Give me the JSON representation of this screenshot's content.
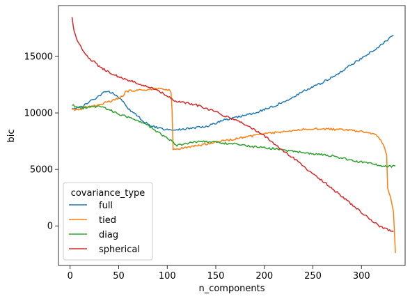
{
  "chart_data": {
    "type": "line",
    "xlabel": "n_components",
    "ylabel": "bic",
    "xlim": [
      -12,
      345
    ],
    "ylim": [
      -3500,
      19500
    ],
    "xticks": [
      0,
      50,
      100,
      150,
      200,
      250,
      300
    ],
    "yticks": [
      0,
      5000,
      10000,
      15000
    ],
    "legend": {
      "title": "covariance_type",
      "placement": "bottom-left"
    },
    "series": [
      {
        "name": "full",
        "color": "#1f77b4",
        "points": [
          [
            2,
            10400
          ],
          [
            10,
            10500
          ],
          [
            15,
            10700
          ],
          [
            20,
            11000
          ],
          [
            25,
            11200
          ],
          [
            30,
            11500
          ],
          [
            35,
            11800
          ],
          [
            40,
            11850
          ],
          [
            45,
            11700
          ],
          [
            50,
            11400
          ],
          [
            55,
            11000
          ],
          [
            60,
            10400
          ],
          [
            65,
            10000
          ],
          [
            70,
            9700
          ],
          [
            75,
            9300
          ],
          [
            80,
            9000
          ],
          [
            85,
            8800
          ],
          [
            90,
            8700
          ],
          [
            95,
            8550
          ],
          [
            100,
            8500
          ],
          [
            110,
            8500
          ],
          [
            120,
            8600
          ],
          [
            130,
            8700
          ],
          [
            140,
            8800
          ],
          [
            150,
            9100
          ],
          [
            160,
            9400
          ],
          [
            170,
            9600
          ],
          [
            180,
            9800
          ],
          [
            190,
            10000
          ],
          [
            200,
            10300
          ],
          [
            210,
            10600
          ],
          [
            220,
            11000
          ],
          [
            230,
            11400
          ],
          [
            240,
            11900
          ],
          [
            250,
            12300
          ],
          [
            260,
            12700
          ],
          [
            270,
            13200
          ],
          [
            280,
            13700
          ],
          [
            290,
            14300
          ],
          [
            300,
            14800
          ],
          [
            310,
            15400
          ],
          [
            320,
            16000
          ],
          [
            333,
            16900
          ]
        ]
      },
      {
        "name": "tied",
        "color": "#ff7f0e",
        "points": [
          [
            2,
            10300
          ],
          [
            10,
            10300
          ],
          [
            15,
            10500
          ],
          [
            20,
            10550
          ],
          [
            25,
            10650
          ],
          [
            30,
            10750
          ],
          [
            40,
            11000
          ],
          [
            50,
            11300
          ],
          [
            55,
            11550
          ],
          [
            57,
            11900
          ],
          [
            65,
            12000
          ],
          [
            75,
            12050
          ],
          [
            85,
            12100
          ],
          [
            95,
            12150
          ],
          [
            103,
            12000
          ],
          [
            104,
            11700
          ],
          [
            105,
            10200
          ],
          [
            106,
            6700
          ],
          [
            110,
            6800
          ],
          [
            120,
            6950
          ],
          [
            130,
            7100
          ],
          [
            140,
            7250
          ],
          [
            150,
            7400
          ],
          [
            160,
            7550
          ],
          [
            170,
            7700
          ],
          [
            180,
            7850
          ],
          [
            190,
            8000
          ],
          [
            200,
            8150
          ],
          [
            210,
            8250
          ],
          [
            220,
            8350
          ],
          [
            230,
            8450
          ],
          [
            240,
            8550
          ],
          [
            250,
            8600
          ],
          [
            260,
            8600
          ],
          [
            270,
            8550
          ],
          [
            280,
            8500
          ],
          [
            290,
            8450
          ],
          [
            300,
            8350
          ],
          [
            310,
            8200
          ],
          [
            315,
            8000
          ],
          [
            320,
            7600
          ],
          [
            324,
            6900
          ],
          [
            326,
            6200
          ],
          [
            327,
            3300
          ],
          [
            330,
            2500
          ],
          [
            333,
            1200
          ],
          [
            335,
            -2400
          ]
        ]
      },
      {
        "name": "diag",
        "color": "#2ca02c",
        "points": [
          [
            2,
            10700
          ],
          [
            10,
            10400
          ],
          [
            20,
            10500
          ],
          [
            30,
            10600
          ],
          [
            40,
            10300
          ],
          [
            50,
            9900
          ],
          [
            60,
            9600
          ],
          [
            70,
            9300
          ],
          [
            80,
            8900
          ],
          [
            90,
            8300
          ],
          [
            100,
            7800
          ],
          [
            105,
            7500
          ],
          [
            110,
            7100
          ],
          [
            120,
            7300
          ],
          [
            130,
            7450
          ],
          [
            140,
            7500
          ],
          [
            150,
            7400
          ],
          [
            160,
            7300
          ],
          [
            170,
            7250
          ],
          [
            180,
            7100
          ],
          [
            190,
            7000
          ],
          [
            200,
            6900
          ],
          [
            210,
            6850
          ],
          [
            220,
            6700
          ],
          [
            230,
            6600
          ],
          [
            240,
            6500
          ],
          [
            250,
            6400
          ],
          [
            260,
            6300
          ],
          [
            270,
            6200
          ],
          [
            280,
            6000
          ],
          [
            290,
            5800
          ],
          [
            300,
            5650
          ],
          [
            310,
            5500
          ],
          [
            320,
            5350
          ],
          [
            327,
            5250
          ],
          [
            335,
            5300
          ]
        ]
      },
      {
        "name": "spherical",
        "color": "#d62728",
        "points": [
          [
            2,
            18400
          ],
          [
            4,
            17200
          ],
          [
            7,
            16400
          ],
          [
            10,
            16000
          ],
          [
            15,
            15300
          ],
          [
            20,
            14800
          ],
          [
            25,
            14500
          ],
          [
            30,
            14100
          ],
          [
            40,
            13600
          ],
          [
            50,
            13200
          ],
          [
            60,
            12900
          ],
          [
            70,
            12600
          ],
          [
            80,
            12300
          ],
          [
            90,
            12000
          ],
          [
            100,
            11500
          ],
          [
            110,
            11000
          ],
          [
            120,
            10900
          ],
          [
            130,
            10700
          ],
          [
            140,
            10400
          ],
          [
            150,
            10100
          ],
          [
            160,
            9700
          ],
          [
            170,
            9400
          ],
          [
            180,
            9000
          ],
          [
            190,
            8500
          ],
          [
            200,
            8000
          ],
          [
            210,
            7300
          ],
          [
            220,
            6600
          ],
          [
            230,
            6000
          ],
          [
            240,
            5300
          ],
          [
            250,
            4600
          ],
          [
            260,
            4000
          ],
          [
            270,
            3300
          ],
          [
            280,
            2600
          ],
          [
            290,
            1900
          ],
          [
            300,
            1200
          ],
          [
            310,
            500
          ],
          [
            320,
            -100
          ],
          [
            333,
            -500
          ]
        ]
      }
    ]
  }
}
